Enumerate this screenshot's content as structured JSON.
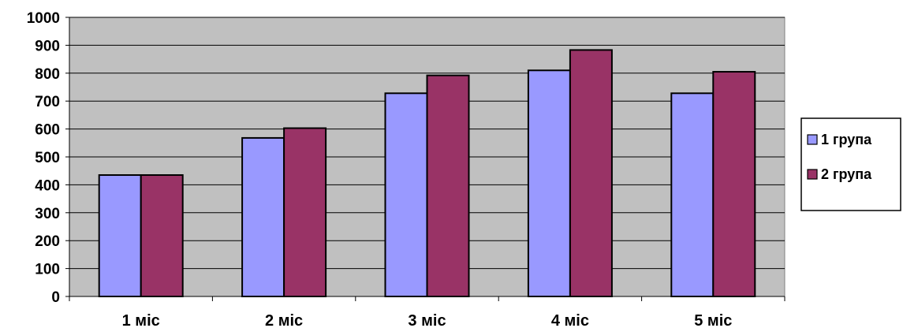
{
  "chart_data": {
    "type": "bar",
    "title": "",
    "xlabel": "",
    "ylabel": "",
    "categories": [
      "1 міс",
      "2 міс",
      "3 міс",
      "4 міс",
      "5 міс"
    ],
    "series": [
      {
        "name": "1 група",
        "values": [
          435,
          568,
          728,
          810,
          728
        ],
        "color": "#9999ff"
      },
      {
        "name": "2 група",
        "values": [
          435,
          603,
          792,
          883,
          805
        ],
        "color": "#993366"
      }
    ],
    "ylim": [
      0,
      1000
    ],
    "yticks": [
      0,
      100,
      200,
      300,
      400,
      500,
      600,
      700,
      800,
      900,
      1000
    ],
    "grid": true,
    "plot_background": "#c0c0c0",
    "legend_position": "right"
  }
}
